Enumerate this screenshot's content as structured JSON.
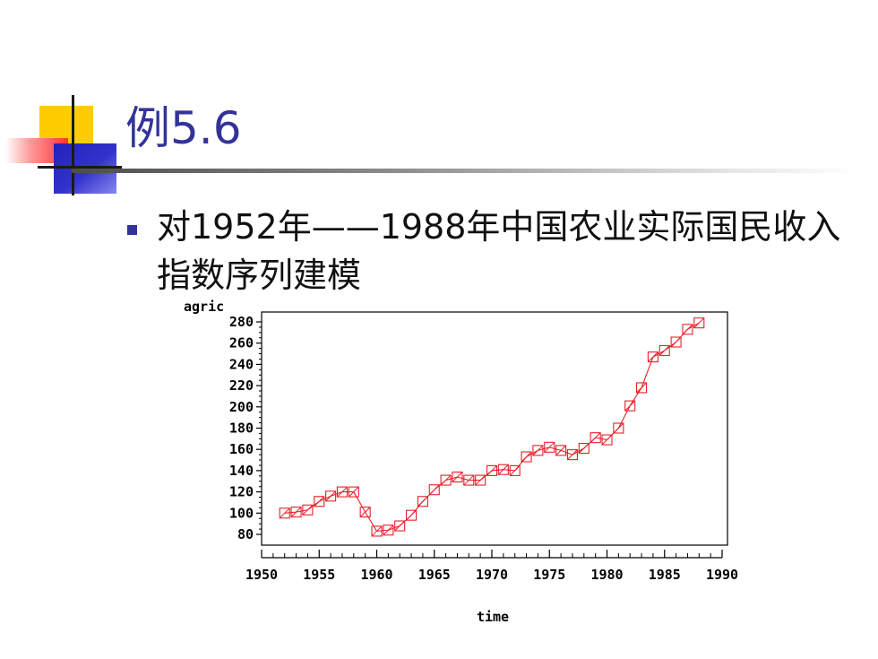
{
  "slide": {
    "title": "例5.6",
    "bullet": "对1952年——1988年中国农业实际国民收入指数序列建模"
  },
  "colors": {
    "title": "#33339a",
    "bullet": "#333399",
    "series": "#e8202a",
    "deco_yellow": "#ffcc00",
    "deco_blue": "#3333cc",
    "deco_red": "#ff3333"
  },
  "chart_data": {
    "type": "line",
    "xlabel": "time",
    "ylabel": "agric",
    "xlim": [
      1950,
      1990
    ],
    "ylim": [
      80,
      280
    ],
    "xticks": [
      1950,
      1955,
      1960,
      1965,
      1970,
      1975,
      1980,
      1985,
      1990
    ],
    "yticks": [
      80,
      100,
      120,
      140,
      160,
      180,
      200,
      220,
      240,
      260,
      280
    ],
    "marker": "square-x",
    "series": [
      {
        "x": [
          1952,
          1953,
          1954,
          1955,
          1956,
          1957,
          1958,
          1959,
          1960,
          1961,
          1962,
          1963,
          1964,
          1965,
          1966,
          1967,
          1968,
          1969,
          1970,
          1971,
          1972,
          1973,
          1974,
          1975,
          1976,
          1977,
          1978,
          1979,
          1980,
          1981,
          1982,
          1983,
          1984,
          1985,
          1986,
          1987,
          1988
        ],
        "values": [
          100,
          101,
          103,
          111,
          116,
          120,
          120,
          101,
          83,
          84,
          88,
          98,
          111,
          122,
          131,
          134,
          131,
          131,
          140,
          141,
          140,
          153,
          159,
          162,
          159,
          155,
          161,
          171,
          169,
          180,
          201,
          218,
          247,
          253,
          261,
          273,
          279
        ]
      }
    ]
  }
}
